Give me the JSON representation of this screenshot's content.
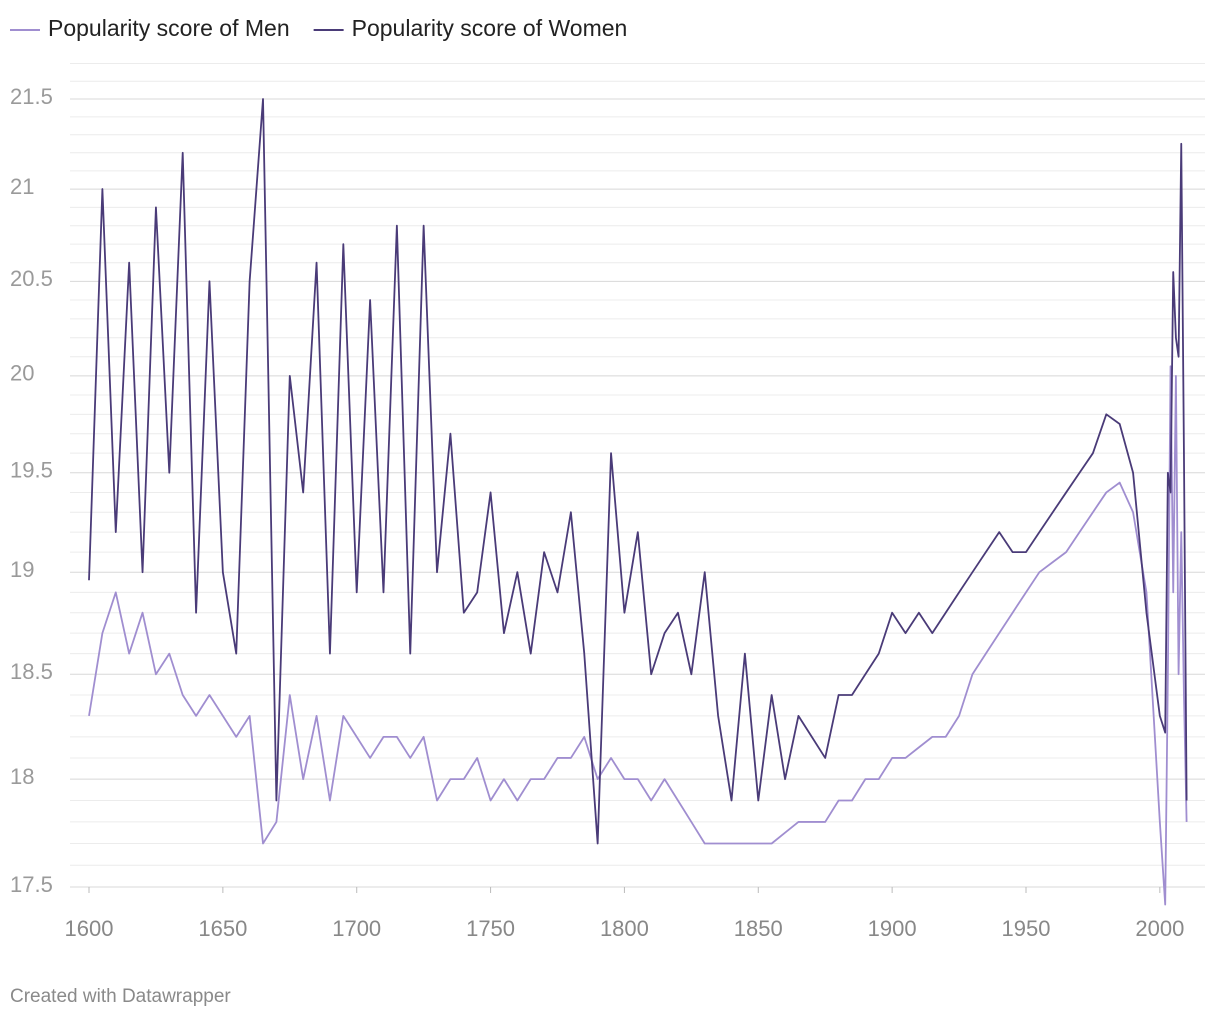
{
  "chart_data": {
    "type": "line",
    "legend": "top-left",
    "footer": "Created with Datawrapper",
    "log_y": true,
    "grid": true,
    "xlim": [
      1600,
      2015
    ],
    "xticks": [
      1600,
      1650,
      1700,
      1750,
      1800,
      1850,
      1900,
      1950,
      2000
    ],
    "ylim": [
      17.5,
      21.5
    ],
    "yticks": [
      17.5,
      18,
      18.5,
      19,
      19.5,
      20,
      20.5,
      21,
      21.5
    ],
    "yminorticks": [
      17.6,
      17.7,
      17.8,
      17.9,
      18.1,
      18.2,
      18.3,
      18.4,
      18.6,
      18.7,
      18.8,
      18.9,
      19.1,
      19.2,
      19.3,
      19.4,
      19.6,
      19.7,
      19.8,
      19.9,
      20.1,
      20.2,
      20.3,
      20.4,
      20.6,
      20.7,
      20.8,
      20.9,
      21.1,
      21.2,
      21.3,
      21.4,
      21.6,
      21.7
    ],
    "x": [
      1600,
      1605,
      1610,
      1615,
      1620,
      1625,
      1630,
      1635,
      1640,
      1645,
      1650,
      1655,
      1660,
      1665,
      1670,
      1675,
      1680,
      1685,
      1690,
      1695,
      1700,
      1705,
      1710,
      1715,
      1720,
      1725,
      1730,
      1735,
      1740,
      1745,
      1750,
      1755,
      1760,
      1765,
      1770,
      1775,
      1780,
      1785,
      1790,
      1795,
      1800,
      1805,
      1810,
      1815,
      1820,
      1825,
      1830,
      1835,
      1840,
      1845,
      1850,
      1855,
      1860,
      1865,
      1870,
      1875,
      1880,
      1885,
      1890,
      1895,
      1900,
      1905,
      1910,
      1915,
      1920,
      1925,
      1930,
      1935,
      1940,
      1945,
      1950,
      1955,
      1960,
      1965,
      1970,
      1975,
      1980,
      1985,
      1990,
      1995,
      2000,
      2002,
      2003,
      2004,
      2005,
      2006,
      2007,
      2008,
      2009,
      2010
    ],
    "series": [
      {
        "name": "Popularity score of Men",
        "color": "#a08ed0",
        "values": [
          18.3,
          18.7,
          18.9,
          18.6,
          18.8,
          18.5,
          18.6,
          18.4,
          18.3,
          18.4,
          18.3,
          18.2,
          18.3,
          17.7,
          17.8,
          18.4,
          18.0,
          18.3,
          17.9,
          18.3,
          18.2,
          18.1,
          18.2,
          18.2,
          18.1,
          18.2,
          17.9,
          18.0,
          18.0,
          18.1,
          17.9,
          18.0,
          17.9,
          18.0,
          18.0,
          18.1,
          18.1,
          18.2,
          18.0,
          18.1,
          18.0,
          18.0,
          17.9,
          18.0,
          17.9,
          17.8,
          17.7,
          17.7,
          17.7,
          17.7,
          17.7,
          17.7,
          17.75,
          17.8,
          17.8,
          17.8,
          17.9,
          17.9,
          18.0,
          18.0,
          18.1,
          18.1,
          18.15,
          18.2,
          18.2,
          18.3,
          18.5,
          18.6,
          18.7,
          18.8,
          18.9,
          19.0,
          19.05,
          19.1,
          19.2,
          19.3,
          19.4,
          19.45,
          19.3,
          18.9,
          17.8,
          17.42,
          18.5,
          20.05,
          18.9,
          20.0,
          18.5,
          19.2,
          18.4,
          17.8
        ]
      },
      {
        "name": "Popularity score of Women",
        "color": "#4a3b78",
        "values": [
          18.96,
          21.0,
          19.2,
          20.6,
          19.0,
          20.9,
          19.5,
          21.2,
          18.8,
          20.5,
          19.0,
          18.6,
          20.5,
          21.5,
          17.9,
          20.0,
          19.4,
          20.6,
          18.6,
          20.7,
          18.9,
          20.4,
          18.9,
          20.8,
          18.6,
          20.8,
          19.0,
          19.7,
          18.8,
          18.9,
          19.4,
          18.7,
          19.0,
          18.6,
          19.1,
          18.9,
          19.3,
          18.6,
          17.7,
          19.6,
          18.8,
          19.2,
          18.5,
          18.7,
          18.8,
          18.5,
          19.0,
          18.3,
          17.9,
          18.6,
          17.9,
          18.4,
          18.0,
          18.3,
          18.2,
          18.1,
          18.4,
          18.4,
          18.5,
          18.6,
          18.8,
          18.7,
          18.8,
          18.7,
          18.8,
          18.9,
          19.0,
          19.1,
          19.2,
          19.1,
          19.1,
          19.2,
          19.3,
          19.4,
          19.5,
          19.6,
          19.8,
          19.75,
          19.5,
          18.8,
          18.3,
          18.22,
          19.5,
          19.4,
          20.55,
          20.2,
          20.1,
          21.25,
          19.6,
          17.9
        ]
      }
    ]
  }
}
